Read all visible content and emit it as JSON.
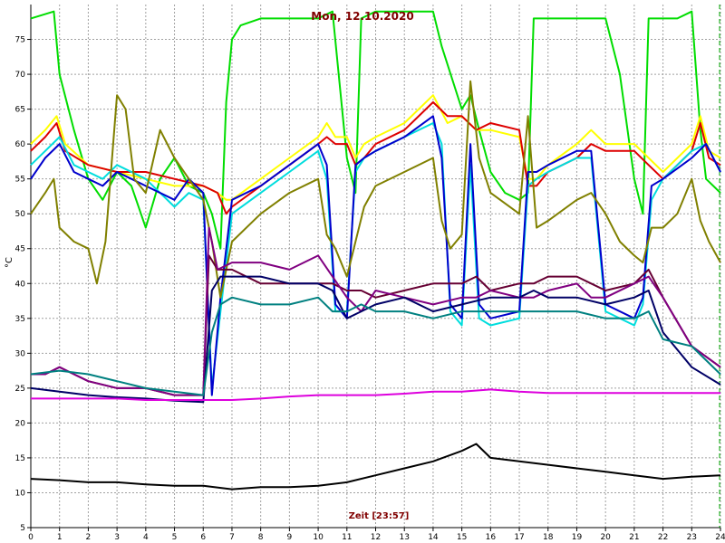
{
  "chart_data": {
    "type": "line",
    "title": "Mon, 12.10.2020",
    "xlabel": "Zeit [23:57]",
    "ylabel": "°C",
    "xlim": [
      0,
      24
    ],
    "ylim": [
      5,
      80
    ],
    "x_ticks": [
      "0",
      "1",
      "2",
      "3",
      "4",
      "5",
      "6",
      "7",
      "8",
      "9",
      "10",
      "11",
      "12",
      "13",
      "14",
      "15",
      "16",
      "17",
      "18",
      "19",
      "20",
      "21",
      "22",
      "23",
      "24"
    ],
    "y_ticks": [
      "5",
      "10",
      "15",
      "20",
      "25",
      "30",
      "35",
      "40",
      "45",
      "50",
      "55",
      "60",
      "65",
      "70",
      "75"
    ],
    "grid": true,
    "current_time_marker": 24,
    "series": [
      {
        "color": "#00dd00",
        "x": [
          0,
          0.8,
          1,
          1.5,
          2,
          2.5,
          3,
          3.5,
          4,
          4.5,
          5,
          5.5,
          6,
          6.3,
          6.6,
          6.8,
          7,
          7.3,
          8,
          9,
          10,
          10.5,
          11,
          11.3,
          11.5,
          12,
          13,
          14,
          14.3,
          15,
          15.3,
          15.6,
          16,
          16.5,
          17,
          17.3,
          17.5,
          18,
          19,
          20,
          20.5,
          21,
          21.3,
          21.5,
          22,
          22.5,
          23,
          23.3,
          23.5,
          24
        ],
        "y": [
          78,
          79,
          70,
          62,
          55,
          52,
          56,
          54,
          48,
          55,
          58,
          54,
          53,
          50,
          45,
          66,
          75,
          77,
          78,
          78,
          78,
          79,
          58,
          53,
          78,
          79,
          79,
          79,
          74,
          65,
          67,
          62,
          56,
          53,
          52,
          53,
          78,
          78,
          78,
          78,
          70,
          55,
          50,
          78,
          78,
          78,
          79,
          62,
          55,
          53
        ]
      },
      {
        "color": "#ffff00",
        "x": [
          0,
          0.5,
          0.9,
          1.2,
          2,
          3,
          4,
          5,
          6,
          6.5,
          6.8,
          7,
          8,
          9,
          10,
          10.3,
          10.6,
          11,
          11.3,
          11.6,
          12,
          13,
          14,
          14.5,
          15,
          15.5,
          16,
          17,
          17.3,
          17.6,
          18,
          19,
          19.5,
          20,
          21,
          21.5,
          22,
          23,
          23.3,
          23.6,
          24
        ],
        "y": [
          60,
          62,
          64,
          60,
          57,
          56,
          55,
          54,
          54,
          53,
          52,
          52,
          55,
          58,
          61,
          63,
          61,
          61,
          58,
          60,
          61,
          63,
          67,
          63,
          64,
          62,
          62,
          61,
          55,
          55,
          57,
          60,
          62,
          60,
          60,
          58,
          56,
          60,
          64,
          59,
          58
        ]
      },
      {
        "color": "#dd0000",
        "x": [
          0,
          0.5,
          0.9,
          1.2,
          2,
          3,
          4,
          5,
          6,
          6.5,
          6.8,
          7,
          8,
          9,
          10,
          10.3,
          10.6,
          11,
          11.3,
          11.6,
          12,
          13,
          14,
          14.5,
          15,
          15.5,
          16,
          17,
          17.3,
          17.6,
          18,
          19,
          19.5,
          20,
          21,
          21.5,
          22,
          23,
          23.3,
          23.6,
          24
        ],
        "y": [
          59,
          61,
          63,
          59,
          57,
          56,
          56,
          55,
          54,
          53,
          50,
          51,
          54,
          57,
          60,
          61,
          60,
          60,
          57,
          58,
          60,
          62,
          66,
          64,
          64,
          62,
          63,
          62,
          54,
          54,
          56,
          58,
          60,
          59,
          59,
          57,
          55,
          59,
          63,
          58,
          57
        ]
      },
      {
        "color": "#00dddd",
        "x": [
          0,
          0.5,
          1,
          1.5,
          2,
          2.5,
          3,
          3.5,
          4,
          5,
          5.5,
          6,
          6.3,
          6.6,
          7,
          8,
          9,
          10,
          10.3,
          10.6,
          11,
          11.3,
          11.6,
          12,
          13,
          14,
          14.3,
          14.6,
          15,
          15.3,
          15.6,
          16,
          17,
          17.3,
          17.6,
          18,
          19,
          19.5,
          20,
          21,
          21.3,
          21.6,
          22,
          23,
          23.5,
          24
        ],
        "y": [
          57,
          59,
          61,
          57,
          56,
          55,
          57,
          56,
          55,
          51,
          53,
          52,
          25,
          36,
          50,
          53,
          56,
          59,
          55,
          36,
          36,
          56,
          58,
          59,
          61,
          63,
          60,
          36,
          34,
          57,
          35,
          34,
          35,
          54,
          55,
          56,
          58,
          58,
          36,
          34,
          37,
          52,
          55,
          59,
          60,
          56
        ]
      },
      {
        "color": "#0000cc",
        "x": [
          0,
          0.5,
          1,
          1.5,
          2,
          2.5,
          3,
          3.5,
          4,
          5,
          5.5,
          6,
          6.3,
          6.6,
          7,
          8,
          9,
          10,
          10.3,
          10.6,
          11,
          11.3,
          11.6,
          12,
          13,
          14,
          14.3,
          14.6,
          15,
          15.3,
          15.6,
          16,
          17,
          17.3,
          17.6,
          18,
          19,
          19.5,
          20,
          21,
          21.3,
          21.6,
          22,
          23,
          23.5,
          24
        ],
        "y": [
          55,
          58,
          60,
          56,
          55,
          54,
          56,
          55,
          54,
          52,
          55,
          53,
          24,
          38,
          52,
          54,
          57,
          60,
          57,
          37,
          35,
          57,
          58,
          59,
          61,
          64,
          58,
          37,
          35,
          60,
          37,
          35,
          36,
          56,
          56,
          57,
          59,
          59,
          37,
          35,
          38,
          54,
          55,
          58,
          60,
          56
        ]
      },
      {
        "color": "#808000",
        "x": [
          0,
          0.5,
          0.8,
          1,
          1.5,
          2,
          2.3,
          2.6,
          3,
          3.3,
          3.6,
          4,
          4.5,
          5,
          5.5,
          6,
          6.3,
          6.6,
          7,
          8,
          9,
          10,
          10.3,
          10.6,
          11,
          11.3,
          11.6,
          12,
          13,
          14,
          14.3,
          14.6,
          15,
          15.3,
          15.6,
          16,
          17,
          17.3,
          17.6,
          18,
          19,
          19.5,
          20,
          20.5,
          21,
          21.3,
          21.6,
          22,
          22.5,
          23,
          23.3,
          23.6,
          24
        ],
        "y": [
          50,
          53,
          55,
          48,
          46,
          45,
          40,
          46,
          67,
          65,
          55,
          53,
          62,
          58,
          55,
          52,
          46,
          38,
          46,
          50,
          53,
          55,
          47,
          45,
          41,
          46,
          51,
          54,
          56,
          58,
          49,
          45,
          47,
          69,
          58,
          53,
          50,
          64,
          48,
          49,
          52,
          53,
          50,
          46,
          44,
          43,
          48,
          48,
          50,
          55,
          49,
          46,
          43
        ]
      },
      {
        "color": "#660033",
        "x": [
          0,
          0.5,
          1,
          1.5,
          2,
          3,
          4,
          5,
          6,
          6.2,
          6.5,
          7,
          8,
          9,
          10,
          10.5,
          11,
          11.5,
          12,
          13,
          14,
          15,
          15.5,
          16,
          17,
          17.5,
          18,
          19,
          19.5,
          20,
          21,
          21.5,
          22,
          23,
          24
        ],
        "y": [
          27,
          27,
          28,
          27,
          26,
          25,
          25,
          24,
          24,
          44,
          42,
          42,
          40,
          40,
          40,
          40,
          39,
          39,
          38,
          39,
          40,
          40,
          41,
          39,
          40,
          40,
          41,
          41,
          40,
          39,
          40,
          42,
          38,
          31,
          28
        ]
      },
      {
        "color": "#800080",
        "x": [
          0,
          0.5,
          1,
          1.5,
          2,
          3,
          4,
          5,
          6,
          6.2,
          6.5,
          7,
          8,
          9,
          10,
          10.5,
          11,
          11.5,
          12,
          13,
          14,
          15,
          15.5,
          16,
          17,
          17.5,
          18,
          19,
          19.5,
          20,
          21,
          21.5,
          22,
          23,
          24
        ],
        "y": [
          27,
          27,
          28,
          27,
          26,
          25,
          25,
          24,
          24,
          48,
          42,
          43,
          43,
          42,
          44,
          41,
          38,
          36,
          39,
          38,
          37,
          38,
          38,
          39,
          38,
          38,
          39,
          40,
          38,
          38,
          40,
          41,
          38,
          31,
          28
        ]
      },
      {
        "color": "#000066",
        "x": [
          0,
          1,
          2,
          3,
          4,
          5,
          6,
          6.3,
          6.6,
          7,
          8,
          9,
          10,
          10.5,
          11,
          11.5,
          12,
          13,
          14,
          15,
          16,
          17,
          17.5,
          18,
          19,
          20,
          21,
          21.5,
          22,
          23,
          24
        ],
        "y": [
          25,
          24.5,
          24,
          23.7,
          23.5,
          23.2,
          23,
          39,
          41,
          41,
          41,
          40,
          40,
          39,
          35,
          36,
          37,
          38,
          36,
          37,
          38,
          38,
          39,
          38,
          38,
          37,
          38,
          39,
          33,
          28,
          25.5
        ]
      },
      {
        "color": "#008080",
        "x": [
          0,
          1,
          2,
          3,
          4,
          5,
          6,
          6.3,
          6.6,
          7,
          8,
          9,
          10,
          10.5,
          11,
          11.5,
          12,
          13,
          14,
          15,
          16,
          17,
          18,
          19,
          20,
          21,
          21.5,
          22,
          23,
          24
        ],
        "y": [
          27,
          27.5,
          27,
          26,
          25,
          24.5,
          24,
          33,
          37,
          38,
          37,
          37,
          38,
          36,
          36,
          37,
          36,
          36,
          35,
          36,
          36,
          36,
          36,
          36,
          35,
          35,
          36,
          32,
          31,
          27
        ]
      },
      {
        "color": "#dd00dd",
        "x": [
          0,
          1,
          2,
          3,
          4,
          5,
          6,
          7,
          8,
          9,
          10,
          11,
          12,
          13,
          14,
          15,
          16,
          17,
          18,
          19,
          20,
          21,
          22,
          23,
          24
        ],
        "y": [
          23.5,
          23.5,
          23.5,
          23.5,
          23.3,
          23.3,
          23.3,
          23.3,
          23.5,
          23.8,
          24,
          24,
          24,
          24.2,
          24.5,
          24.5,
          24.8,
          24.5,
          24.3,
          24.3,
          24.3,
          24.3,
          24.3,
          24.3,
          24.3
        ]
      },
      {
        "color": "#000000",
        "x": [
          0,
          1,
          2,
          3,
          4,
          5,
          6,
          7,
          8,
          9,
          10,
          11,
          12,
          13,
          14,
          15,
          15.5,
          16,
          17,
          18,
          19,
          20,
          21,
          22,
          23,
          24
        ],
        "y": [
          12,
          11.8,
          11.5,
          11.5,
          11.2,
          11,
          11,
          10.5,
          10.8,
          10.8,
          11,
          11.5,
          12.5,
          13.5,
          14.5,
          16,
          17,
          15,
          14.5,
          14,
          13.5,
          13,
          12.5,
          12,
          12.3,
          12.5
        ]
      }
    ]
  }
}
